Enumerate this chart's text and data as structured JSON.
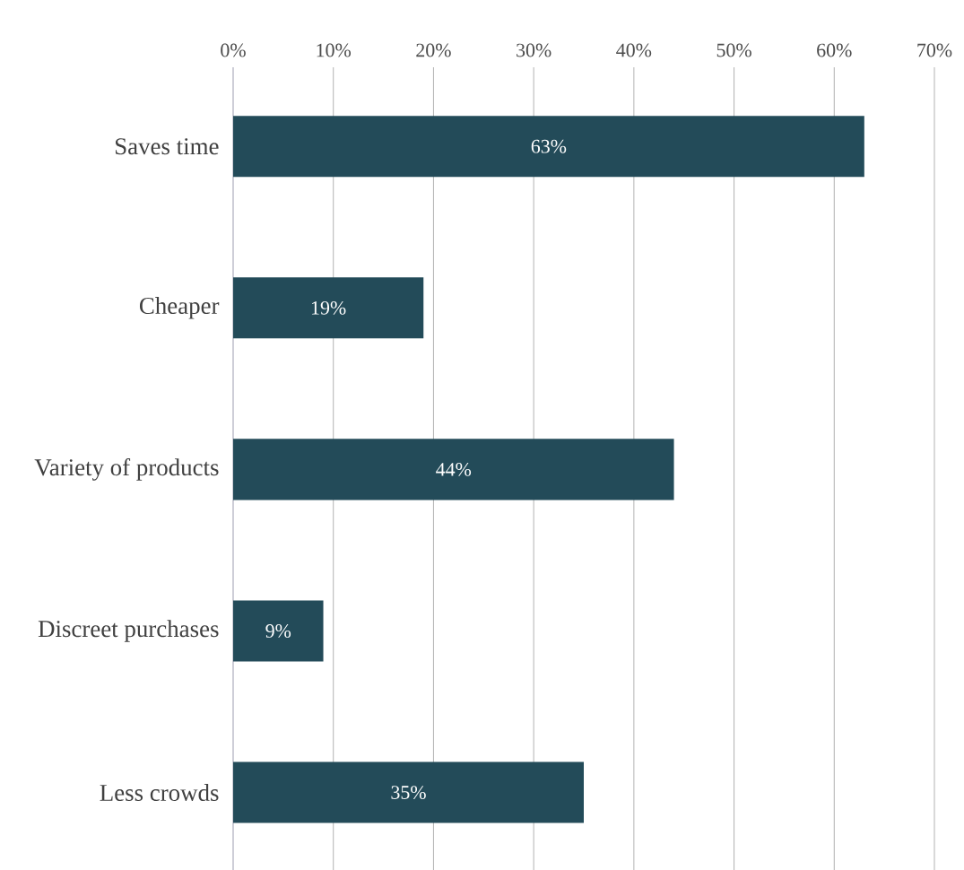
{
  "chart_data": {
    "type": "bar",
    "orientation": "horizontal",
    "categories": [
      "Saves time",
      "Cheaper",
      "Variety of products",
      "Discreet purchases",
      "Less crowds"
    ],
    "values": [
      63,
      19,
      44,
      9,
      35
    ],
    "value_labels": [
      "63%",
      "19%",
      "44%",
      "9%",
      "35%"
    ],
    "color": "#234b59",
    "xlim": [
      0,
      70
    ],
    "xticks": [
      {
        "value": 0,
        "label": "0%"
      },
      {
        "value": 10,
        "label": "10%"
      },
      {
        "value": 20,
        "label": "20%"
      },
      {
        "value": 30,
        "label": "30%"
      },
      {
        "value": 40,
        "label": "40%"
      },
      {
        "value": 50,
        "label": "50%"
      },
      {
        "value": 60,
        "label": "60%"
      },
      {
        "value": 70,
        "label": "70%"
      }
    ],
    "grid": "x"
  }
}
